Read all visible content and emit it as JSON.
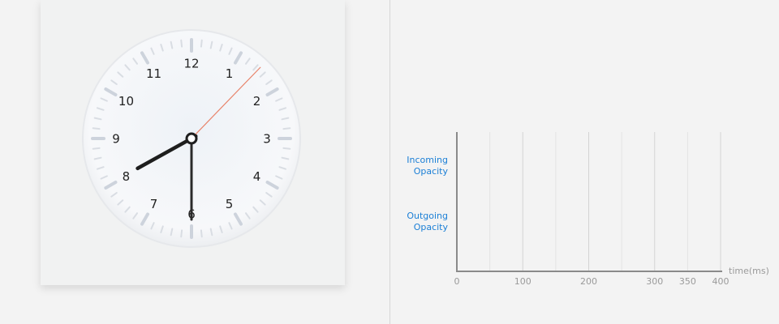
{
  "clock": {
    "numbers": [
      "12",
      "1",
      "2",
      "3",
      "4",
      "5",
      "6",
      "7",
      "8",
      "9",
      "10",
      "11"
    ],
    "hour_hand_angle_deg": 241,
    "minute_hand_angle_deg": 180,
    "second_hand_angle_deg": 44,
    "second_hand_color": "#e8836a"
  },
  "chart": {
    "y_labels": [
      [
        "Incoming",
        "Opacity"
      ],
      [
        "Outgoing",
        "Opacity"
      ]
    ],
    "x_axis_label": "time(ms)",
    "x_ticks": [
      "0",
      "100",
      "200",
      "300",
      "350",
      "400"
    ],
    "x_tick_values": [
      0,
      100,
      200,
      300,
      350,
      400
    ],
    "grid_values": [
      50,
      100,
      150,
      200,
      250,
      300,
      350,
      400
    ],
    "xlim": [
      0,
      400
    ],
    "label_color": "#1b7fd6",
    "highlight_tick": "350"
  }
}
